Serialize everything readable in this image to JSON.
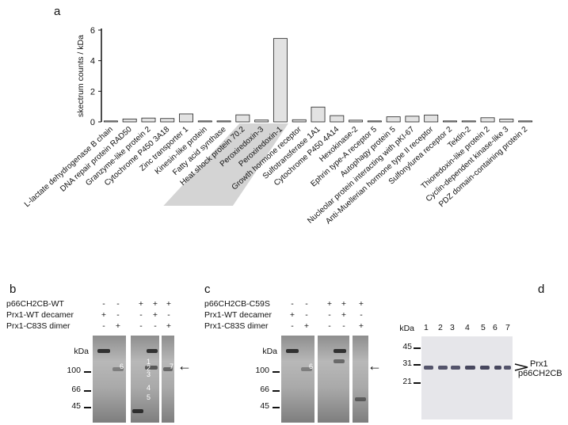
{
  "panels": {
    "a": "a",
    "b": "b",
    "c": "c",
    "d": "d"
  },
  "chart_data": {
    "type": "bar",
    "title": "",
    "ylabel": "skectrum counts / kDa",
    "xlabel": "",
    "ylim": [
      0,
      6
    ],
    "yticks": [
      "0",
      "2",
      "4",
      "6"
    ],
    "bar_color": "#e2e2e2",
    "highlight_color": "#d4d4d4",
    "categories": [
      "L-lactate dehydrogenase B chain",
      "DNA repair protein RAD50",
      "Granzyme-like protein 2",
      "Cytochrome P450 3A18",
      "Zinc transporter 1",
      "Kinesin-like protein",
      "Fatty acid synthase",
      "Heat shock protein 70.2",
      "Peroxiredoxin-3",
      "Peroxiredoxin-1",
      "Growth hormone receptor",
      "Sulfotransferase 1A1",
      "Cytochrome P450 4A14",
      "Hexokinase-2",
      "Ephrin type-A receptor 5",
      "Autophagy protein 5",
      "Nucleolar protein interacting with pKI-67",
      "Anti-Muellerian hormone type II receptor",
      "Sulfonylurea receptor 2",
      "Tektin-2",
      "Thioredoxin-like protein 2",
      "Cyclin-dependent kinase-like 3",
      "PDZ domain-containing protein 2"
    ],
    "values": [
      0.04,
      0.19,
      0.25,
      0.22,
      0.52,
      0.05,
      0.0,
      0.46,
      0.12,
      5.45,
      0.14,
      0.97,
      0.41,
      0.11,
      0.0,
      0.33,
      0.37,
      0.45,
      0.04,
      0.05,
      0.27,
      0.18,
      0.04
    ],
    "highlighted": [
      "Heat shock protein 70.2",
      "Peroxiredoxin-3",
      "Peroxiredoxin-1"
    ]
  },
  "panel_b": {
    "rows": [
      {
        "label": "p66CH2CB-WT",
        "signs": [
          "-",
          "-",
          "+",
          "+",
          "+"
        ]
      },
      {
        "label": "Prx1-WT decamer",
        "signs": [
          "+",
          "-",
          "-",
          "+",
          "-"
        ]
      },
      {
        "label": "Prx1-C83S dimer",
        "signs": [
          "-",
          "+",
          "-",
          "-",
          "+"
        ]
      }
    ],
    "mw_unit": "kDa",
    "markers": [
      "100",
      "66",
      "45"
    ],
    "band_labels": [
      "6",
      "1",
      "2",
      "3",
      "4",
      "5",
      "7"
    ]
  },
  "panel_c": {
    "rows": [
      {
        "label": "p66CH2CB-C59S",
        "signs": [
          "-",
          "-",
          "+",
          "+",
          "+"
        ]
      },
      {
        "label": "Prx1-WT decamer",
        "signs": [
          "+",
          "-",
          "-",
          "+",
          "-"
        ]
      },
      {
        "label": "Prx1-C83S dimer",
        "signs": [
          "-",
          "+",
          "-",
          "-",
          "+"
        ]
      }
    ],
    "mw_unit": "kDa",
    "markers": [
      "100",
      "66",
      "45"
    ],
    "band_labels": [
      "6"
    ]
  },
  "panel_d": {
    "mw_unit": "kDa",
    "lanes": [
      "1",
      "2",
      "3",
      "4",
      "5",
      "6",
      "7"
    ],
    "markers": [
      "45",
      "31",
      "21"
    ],
    "band_names": [
      "Prx1",
      "p66CH2CB"
    ]
  },
  "arrow_glyph": "←"
}
